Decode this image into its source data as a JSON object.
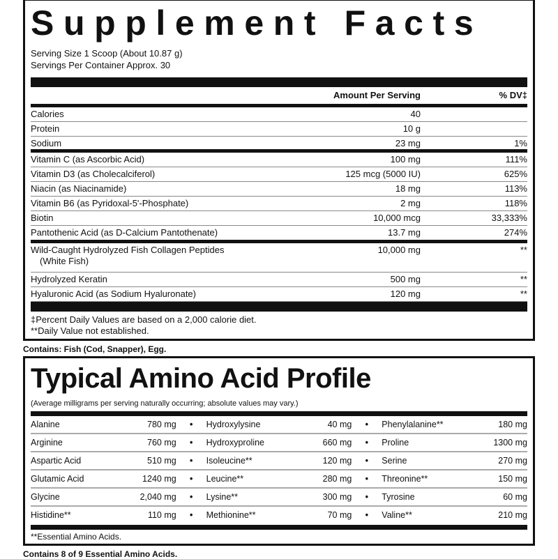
{
  "title": "Supplement Facts",
  "serving_size": "Serving Size 1 Scoop (About 10.87 g)",
  "servings": "Servings Per Container Approx. 30",
  "header": {
    "amount": "Amount Per Serving",
    "dv": "% DV‡"
  },
  "group1": [
    {
      "name": "Calories",
      "amount": "40",
      "dv": ""
    },
    {
      "name": "Protein",
      "amount": "10 g",
      "dv": ""
    },
    {
      "name": "Sodium",
      "amount": "23 mg",
      "dv": "1%"
    }
  ],
  "group2": [
    {
      "name": "Vitamin C (as Ascorbic Acid)",
      "amount": "100 mg",
      "dv": "111%"
    },
    {
      "name": "Vitamin D3 (as Cholecalciferol)",
      "amount": "125 mcg (5000 IU)",
      "dv": "625%"
    },
    {
      "name": "Niacin (as Niacinamide)",
      "amount": "18 mg",
      "dv": "113%"
    },
    {
      "name": "Vitamin B6 (as Pyridoxal-5'-Phosphate)",
      "amount": "2 mg",
      "dv": "118%"
    },
    {
      "name": "Biotin",
      "amount": "10,000 mcg",
      "dv": "33,333%"
    },
    {
      "name": "Pantothenic Acid (as D-Calcium Pantothenate)",
      "amount": "13.7 mg",
      "dv": "274%"
    }
  ],
  "group3": [
    {
      "name": "Wild-Caught Hydrolyzed Fish Collagen Peptides",
      "name2": "(White Fish)",
      "amount": "10,000 mg",
      "dv": "**"
    },
    {
      "name": "Hydrolyzed Keratin",
      "amount": "500 mg",
      "dv": "**"
    },
    {
      "name": "Hyaluronic Acid (as Sodium Hyaluronate)",
      "amount": "120 mg",
      "dv": "**"
    }
  ],
  "footnote1": "‡Percent Daily Values are based on a 2,000 calorie diet.",
  "footnote2": "**Daily Value not established.",
  "contains": "Contains: Fish (Cod, Snapper), Egg.",
  "amino": {
    "title": "Typical Amino Acid Profile",
    "subtitle": "(Average milligrams per serving naturally occurring; absolute values may vary.)",
    "rows": [
      [
        [
          "Alanine",
          "780 mg"
        ],
        [
          "Hydroxylysine",
          "40 mg"
        ],
        [
          "Phenylalanine**",
          "180 mg"
        ]
      ],
      [
        [
          "Arginine",
          "760 mg"
        ],
        [
          "Hydroxyproline",
          "660 mg"
        ],
        [
          "Proline",
          "1300 mg"
        ]
      ],
      [
        [
          "Aspartic Acid",
          "510 mg"
        ],
        [
          "Isoleucine**",
          "120 mg"
        ],
        [
          "Serine",
          "270 mg"
        ]
      ],
      [
        [
          "Glutamic Acid",
          "1240 mg"
        ],
        [
          "Leucine**",
          "280 mg"
        ],
        [
          "Threonine**",
          "150 mg"
        ]
      ],
      [
        [
          "Glycine",
          "2,040 mg"
        ],
        [
          "Lysine**",
          "300 mg"
        ],
        [
          "Tyrosine",
          "60 mg"
        ]
      ],
      [
        [
          "Histidine**",
          "110 mg"
        ],
        [
          "Methionine**",
          "70 mg"
        ],
        [
          "Valine**",
          "210 mg"
        ]
      ]
    ],
    "bullet": "•",
    "footnote": "**Essential Amino Acids.",
    "contains": "Contains 8 of 9 Essential Amino Acids."
  }
}
